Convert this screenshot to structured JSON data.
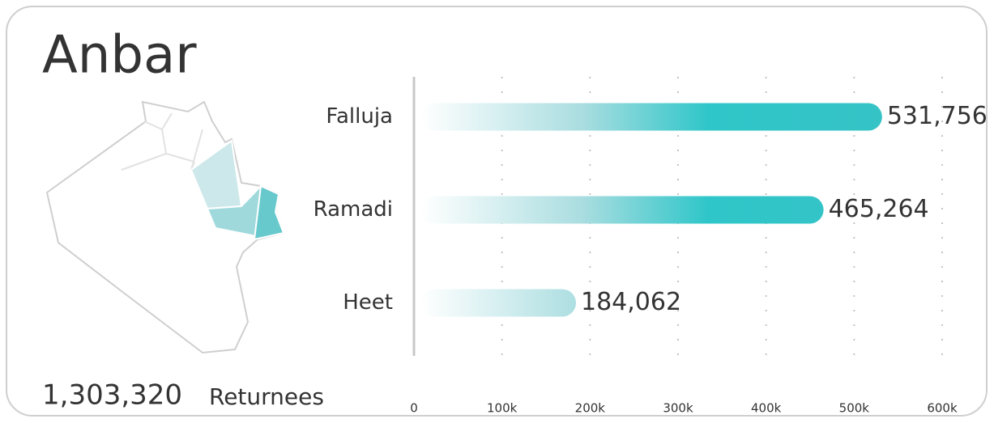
{
  "chart_data": {
    "type": "bar",
    "orientation": "horizontal",
    "title": "Anbar",
    "total": "1,303,320",
    "total_unit": "Returnees",
    "categories": [
      "Falluja",
      "Ramadi",
      "Heet"
    ],
    "values": [
      531756,
      465264,
      184062
    ],
    "value_labels": [
      "531,756",
      "465,264",
      "184,062"
    ],
    "color": "#35c3c6",
    "xlim": [
      0,
      600000
    ],
    "xticks": [
      0,
      {
        "value": 100000,
        "label": "100k"
      },
      {
        "value": 200000,
        "label": "200k"
      },
      {
        "value": 300000,
        "label": "300k"
      },
      {
        "value": 400000,
        "label": "400k"
      },
      {
        "value": 500000,
        "label": "500k"
      },
      {
        "value": 600000,
        "label": "600k"
      }
    ],
    "grid": true
  }
}
